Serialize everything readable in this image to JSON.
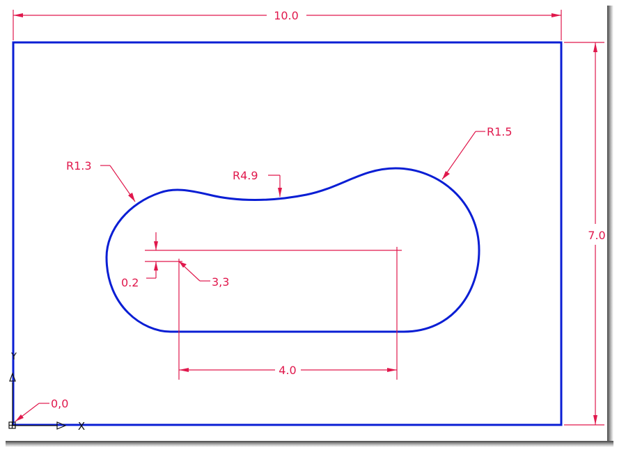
{
  "dimensions": {
    "width": "10.0",
    "height": "7.0",
    "slot_length": "4.0",
    "offset": "0.2",
    "start_point": "3,3",
    "origin": "0,0",
    "radius_left": "R1.3",
    "radius_top": "R4.9",
    "radius_right": "R1.5"
  },
  "ucs": {
    "x_label": "X",
    "y_label": "Y"
  },
  "colors": {
    "geometry": "#0a1ed4",
    "dimension": "#e0184c",
    "ucs": "#111111"
  }
}
